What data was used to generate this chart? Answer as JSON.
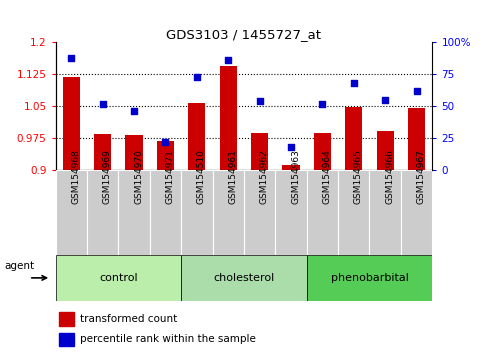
{
  "title": "GDS3103 / 1455727_at",
  "samples": [
    "GSM154968",
    "GSM154969",
    "GSM154970",
    "GSM154971",
    "GSM154510",
    "GSM154961",
    "GSM154962",
    "GSM154963",
    "GSM154964",
    "GSM154965",
    "GSM154966",
    "GSM154967"
  ],
  "transformed_count": [
    1.118,
    0.985,
    0.982,
    0.968,
    1.058,
    1.145,
    0.988,
    0.912,
    0.987,
    1.048,
    0.992,
    1.046
  ],
  "percentile_rank": [
    88,
    52,
    46,
    22,
    73,
    86,
    54,
    18,
    52,
    68,
    55,
    62
  ],
  "groups": [
    {
      "label": "control",
      "start": 0,
      "end": 3,
      "color": "#bbeeaa"
    },
    {
      "label": "cholesterol",
      "start": 4,
      "end": 7,
      "color": "#aaddaa"
    },
    {
      "label": "phenobarbital",
      "start": 8,
      "end": 11,
      "color": "#55cc55"
    }
  ],
  "bar_color": "#cc0000",
  "dot_color": "#0000cc",
  "ylim_left": [
    0.9,
    1.2
  ],
  "ylim_right": [
    0,
    100
  ],
  "yticks_left": [
    0.9,
    0.975,
    1.05,
    1.125,
    1.2
  ],
  "ytick_labels_left": [
    "0.9",
    "0.975",
    "1.05",
    "1.125",
    "1.2"
  ],
  "yticks_right": [
    0,
    25,
    50,
    75,
    100
  ],
  "ytick_labels_right": [
    "0",
    "25",
    "50",
    "75",
    "100%"
  ],
  "hlines": [
    0.975,
    1.05,
    1.125
  ],
  "agent_label": "agent",
  "legend_bar_label": "transformed count",
  "legend_dot_label": "percentile rank within the sample",
  "xtick_bg": "#cccccc",
  "plot_bg": "#ffffff"
}
